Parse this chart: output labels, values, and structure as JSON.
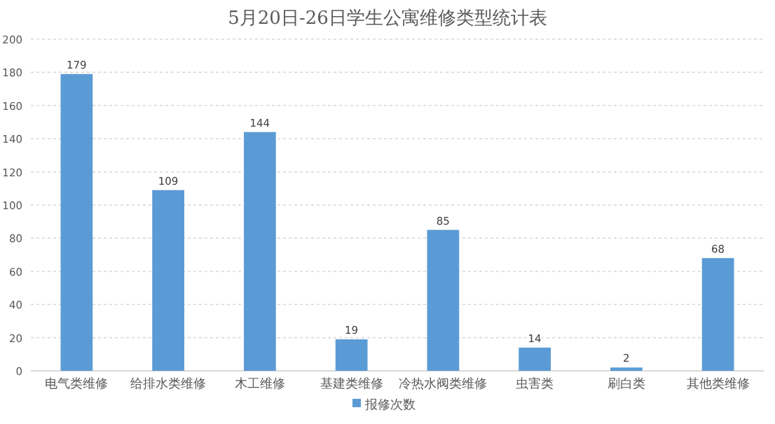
{
  "chart_data": {
    "type": "bar",
    "title": "5月20日-26日学生公寓维修类型统计表",
    "categories": [
      "电气类维修",
      "给排水类维修",
      "木工维修",
      "基建类维修",
      "冷热水阀类维修",
      "虫害类",
      "刷白类",
      "其他类维修"
    ],
    "series": [
      {
        "name": "报修次数",
        "color": "#5b9bd5",
        "values": [
          179,
          109,
          144,
          19,
          85,
          14,
          2,
          68
        ]
      }
    ],
    "ylim": [
      0,
      200
    ],
    "yticks": [
      0,
      20,
      40,
      60,
      80,
      100,
      120,
      140,
      160,
      180,
      200
    ],
    "grid": "y",
    "legend": "bottom",
    "data_labels": true
  }
}
